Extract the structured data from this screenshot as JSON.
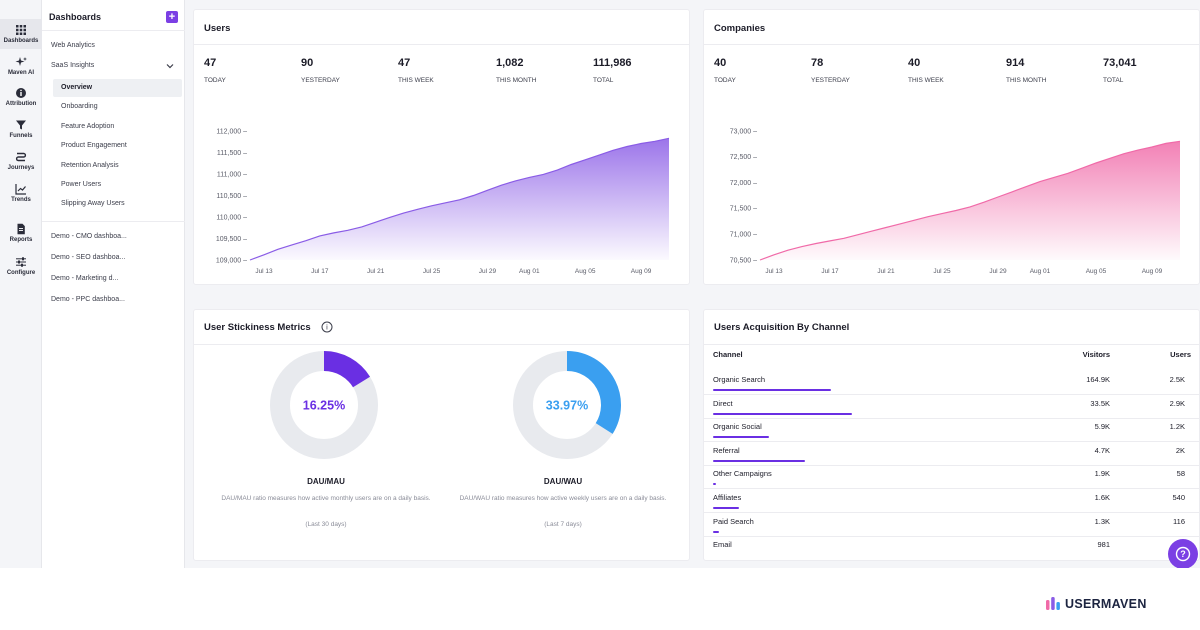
{
  "rail": {
    "items": [
      {
        "label": "Dashboards",
        "icon": "grid-icon"
      },
      {
        "label": "Maven AI",
        "icon": "sparkle-icon"
      },
      {
        "label": "Attribution",
        "icon": "info-icon"
      },
      {
        "label": "Funnels",
        "icon": "funnel-icon"
      },
      {
        "label": "Journeys",
        "icon": "journey-icon"
      },
      {
        "label": "Trends",
        "icon": "trend-icon"
      },
      {
        "label": "Reports",
        "icon": "report-icon"
      },
      {
        "label": "Configure",
        "icon": "sliders-icon"
      }
    ]
  },
  "sidebar": {
    "title": "Dashboards",
    "add_symbol": "+",
    "web_analytics": "Web Analytics",
    "saas_insights": "SaaS Insights",
    "sub_items": [
      "Overview",
      "Onboarding",
      "Feature Adoption",
      "Product Engagement",
      "Retention Analysis",
      "Power Users",
      "Slipping Away Users"
    ],
    "demos": [
      "Demo - CMO dashboa...",
      "Demo - SEO dashboa...",
      "Demo - Marketing d...",
      "Demo - PPC dashboa..."
    ]
  },
  "users_card": {
    "title": "Users",
    "stats": [
      {
        "value": "47",
        "label": "TODAY"
      },
      {
        "value": "90",
        "label": "YESTERDAY"
      },
      {
        "value": "47",
        "label": "THIS WEEK"
      },
      {
        "value": "1,082",
        "label": "THIS MONTH"
      },
      {
        "value": "111,986",
        "label": "TOTAL"
      }
    ],
    "yticks": [
      "112,000 –",
      "111,500 –",
      "111,000 –",
      "110,500 –",
      "110,000 –",
      "109,500 –",
      "109,000 –"
    ],
    "xticks": [
      "Jul 13",
      "Jul 17",
      "Jul 21",
      "Jul 25",
      "Jul 29",
      "Aug 01",
      "Aug 05",
      "Aug 09"
    ]
  },
  "companies_card": {
    "title": "Companies",
    "stats": [
      {
        "value": "40",
        "label": "TODAY"
      },
      {
        "value": "78",
        "label": "YESTERDAY"
      },
      {
        "value": "40",
        "label": "THIS WEEK"
      },
      {
        "value": "914",
        "label": "THIS MONTH"
      },
      {
        "value": "73,041",
        "label": "TOTAL"
      }
    ],
    "yticks": [
      "73,000 –",
      "72,500 –",
      "72,000 –",
      "71,500 –",
      "71,000 –",
      "70,500 –"
    ],
    "xticks": [
      "Jul 13",
      "Jul 17",
      "Jul 21",
      "Jul 25",
      "Jul 29",
      "Aug 01",
      "Aug 05",
      "Aug 09"
    ]
  },
  "chart_data": [
    {
      "type": "area",
      "ylim": [
        109000,
        112000
      ],
      "x": [
        "Jul 12",
        "Jul 13",
        "Jul 14",
        "Jul 15",
        "Jul 16",
        "Jul 17",
        "Jul 18",
        "Jul 19",
        "Jul 20",
        "Jul 21",
        "Jul 22",
        "Jul 23",
        "Jul 24",
        "Jul 25",
        "Jul 26",
        "Jul 27",
        "Jul 28",
        "Jul 29",
        "Jul 30",
        "Jul 31",
        "Aug 01",
        "Aug 02",
        "Aug 03",
        "Aug 04",
        "Aug 05",
        "Aug 06",
        "Aug 07",
        "Aug 08",
        "Aug 09",
        "Aug 10",
        "Aug 11"
      ],
      "values": [
        109000,
        109120,
        109250,
        109350,
        109450,
        109560,
        109630,
        109690,
        109770,
        109880,
        109990,
        110090,
        110180,
        110260,
        110330,
        110400,
        110500,
        110620,
        110740,
        110840,
        110920,
        110990,
        111090,
        111220,
        111330,
        111440,
        111550,
        111640,
        111710,
        111760,
        111830
      ],
      "color": "#8a5ce6"
    },
    {
      "type": "area",
      "ylim": [
        70500,
        73000
      ],
      "x": [
        "Jul 12",
        "Jul 13",
        "Jul 14",
        "Jul 15",
        "Jul 16",
        "Jul 17",
        "Jul 18",
        "Jul 19",
        "Jul 20",
        "Jul 21",
        "Jul 22",
        "Jul 23",
        "Jul 24",
        "Jul 25",
        "Jul 26",
        "Jul 27",
        "Jul 28",
        "Jul 29",
        "Jul 30",
        "Jul 31",
        "Aug 01",
        "Aug 02",
        "Aug 03",
        "Aug 04",
        "Aug 05",
        "Aug 06",
        "Aug 07",
        "Aug 08",
        "Aug 09",
        "Aug 10",
        "Aug 11"
      ],
      "values": [
        70500,
        70600,
        70690,
        70760,
        70820,
        70870,
        70920,
        70990,
        71060,
        71130,
        71200,
        71270,
        71340,
        71400,
        71460,
        71530,
        71620,
        71720,
        71820,
        71920,
        72020,
        72100,
        72180,
        72280,
        72380,
        72470,
        72560,
        72630,
        72690,
        72760,
        72800
      ],
      "color": "#f06aa8"
    },
    {
      "type": "pie",
      "label": "DAU/MAU",
      "value": 16.25,
      "display": "16.25%",
      "color": "#6a2fe3"
    },
    {
      "type": "pie",
      "label": "DAU/WAU",
      "value": 33.97,
      "display": "33.97%",
      "color": "#3a9ff0"
    }
  ],
  "stickiness": {
    "title": "User Stickiness Metrics",
    "info_symbol": "i",
    "dau_mau": {
      "value": "16.25%",
      "title": "DAU/MAU",
      "desc": "DAU/MAU ratio measures how active monthly users are on a daily basis.",
      "foot": "(Last 30 days)"
    },
    "dau_wau": {
      "value": "33.97%",
      "title": "DAU/WAU",
      "desc": "DAU/WAU ratio measures how active weekly users are on a daily basis.",
      "foot": "(Last 7 days)"
    }
  },
  "acquisition": {
    "title": "Users Acquisition By Channel",
    "headers": {
      "channel": "Channel",
      "visitors": "Visitors",
      "users": "Users"
    },
    "rows": [
      {
        "channel": "Organic Search",
        "visitors": "164.9K",
        "users": "2.5K",
        "share": 0.238
      },
      {
        "channel": "Direct",
        "visitors": "33.5K",
        "users": "2.9K",
        "share": 0.279
      },
      {
        "channel": "Organic Social",
        "visitors": "5.9K",
        "users": "1.2K",
        "share": 0.113
      },
      {
        "channel": "Referral",
        "visitors": "4.7K",
        "users": "2K",
        "share": 0.186
      },
      {
        "channel": "Other Campaigns",
        "visitors": "1.9K",
        "users": "58",
        "share": 0.006
      },
      {
        "channel": "Affiliates",
        "visitors": "1.6K",
        "users": "540",
        "share": 0.052
      },
      {
        "channel": "Paid Search",
        "visitors": "1.3K",
        "users": "116",
        "share": 0.012
      },
      {
        "channel": "Email",
        "visitors": "981",
        "users": "",
        "share": 0
      }
    ]
  },
  "brand": {
    "name": "USERMAVEN"
  },
  "help": {
    "symbol": "?"
  },
  "colors": {
    "accent": "#7b3fe4",
    "users_line": "#8a5ce6",
    "companies_line": "#f06aa8"
  }
}
